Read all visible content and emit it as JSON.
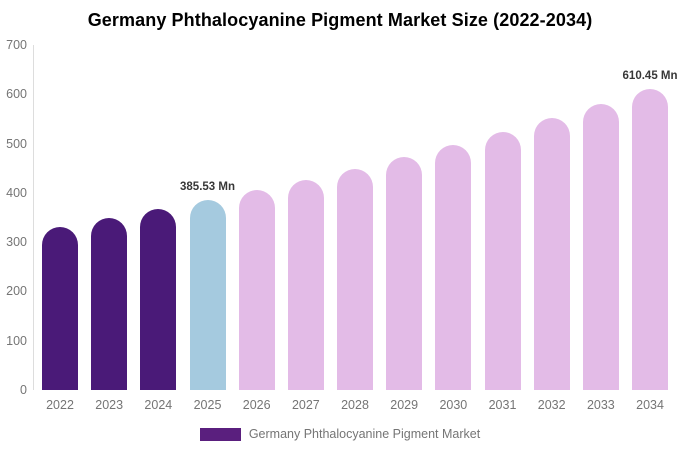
{
  "chart_data": {
    "type": "bar",
    "title": "Germany Phthalocyanine Pigment Market Size (2022-2034)",
    "xlabel": "",
    "ylabel": "",
    "ylim": [
      0,
      700
    ],
    "yticks": [
      0,
      100,
      200,
      300,
      400,
      500,
      600,
      700
    ],
    "grid": false,
    "legend_position": "bottom",
    "categories": [
      "2022",
      "2023",
      "2024",
      "2025",
      "2026",
      "2027",
      "2028",
      "2029",
      "2030",
      "2031",
      "2032",
      "2033",
      "2034"
    ],
    "series": [
      {
        "name": "Germany Phthalocyanine Pigment Market",
        "values": [
          330.8,
          348.11,
          366.28,
          385.53,
          405.73,
          426.99,
          449.36,
          472.91,
          497.69,
          523.77,
          551.22,
          580.1,
          610.45
        ]
      }
    ],
    "bar_roles": [
      "past",
      "past",
      "past",
      "current",
      "forecast",
      "forecast",
      "forecast",
      "forecast",
      "forecast",
      "forecast",
      "forecast",
      "forecast",
      "forecast"
    ],
    "annotations": [
      {
        "year": "2025",
        "label": "385.53 Mn"
      },
      {
        "year": "2034",
        "label": "610.45 Mn"
      }
    ]
  },
  "colors": {
    "past": "#4A1A78",
    "current": "#A5CADF",
    "forecast": "#E3BBE7",
    "axis_line": "#DDDDDD",
    "tick_text": "#757575",
    "annotation_text": "#373737"
  },
  "legend": {
    "label": "Germany Phthalocyanine Pigment Market",
    "swatch_color": "#5A1F7E"
  }
}
